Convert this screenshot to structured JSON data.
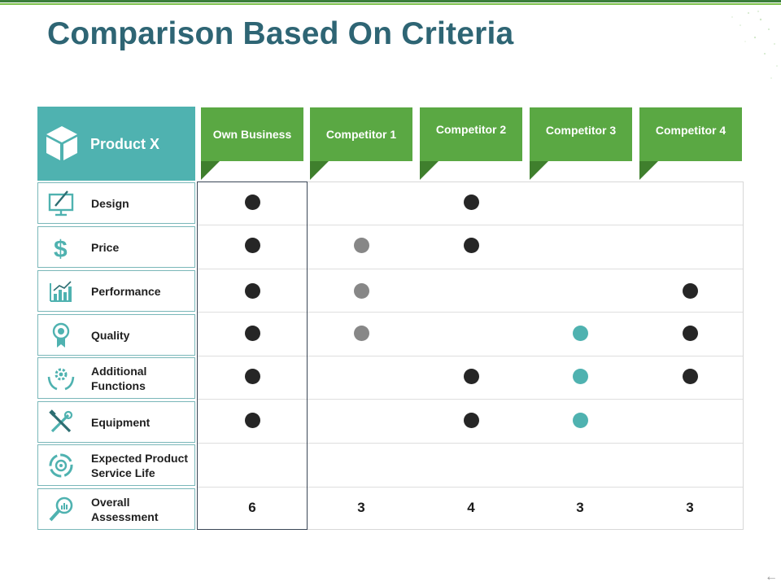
{
  "slide": {
    "title": "Comparison Based On Criteria"
  },
  "product": {
    "label": "Product X",
    "icon": "cube-icon"
  },
  "columns": [
    {
      "label": "Own Business"
    },
    {
      "label": "Competitor 1"
    },
    {
      "label": "Competitor 2"
    },
    {
      "label": "Competitor 3"
    },
    {
      "label": "Competitor 4"
    }
  ],
  "criteria": [
    {
      "label": "Design",
      "icon": "monitor-edit-icon"
    },
    {
      "label": "Price",
      "icon": "dollar-icon"
    },
    {
      "label": "Performance",
      "icon": "bar-chart-icon"
    },
    {
      "label": "Quality",
      "icon": "award-ribbon-icon"
    },
    {
      "label": "Additional Functions",
      "icon": "hands-gear-icon"
    },
    {
      "label": "Equipment",
      "icon": "tools-icon"
    },
    {
      "label": "Expected Product Service Life",
      "icon": "cycle-target-icon"
    },
    {
      "label": "Overall Assessment",
      "icon": "magnifier-chart-icon"
    }
  ],
  "matrix": [
    [
      "black",
      "",
      "black",
      "",
      ""
    ],
    [
      "black",
      "gray",
      "black",
      "",
      ""
    ],
    [
      "black",
      "gray",
      "",
      "",
      "black"
    ],
    [
      "black",
      "gray",
      "",
      "teal",
      "black"
    ],
    [
      "black",
      "",
      "black",
      "teal",
      "black"
    ],
    [
      "black",
      "",
      "black",
      "teal",
      ""
    ],
    [
      "",
      "",
      "",
      "",
      ""
    ]
  ],
  "totals": [
    "6",
    "3",
    "4",
    "3",
    "3"
  ],
  "colors": {
    "title": "#2e6574",
    "teal": "#4fb2b0",
    "green": "#5aa843",
    "dark_green": "#3f7f2d",
    "dot_black": "#262626",
    "dot_gray": "#878787"
  }
}
